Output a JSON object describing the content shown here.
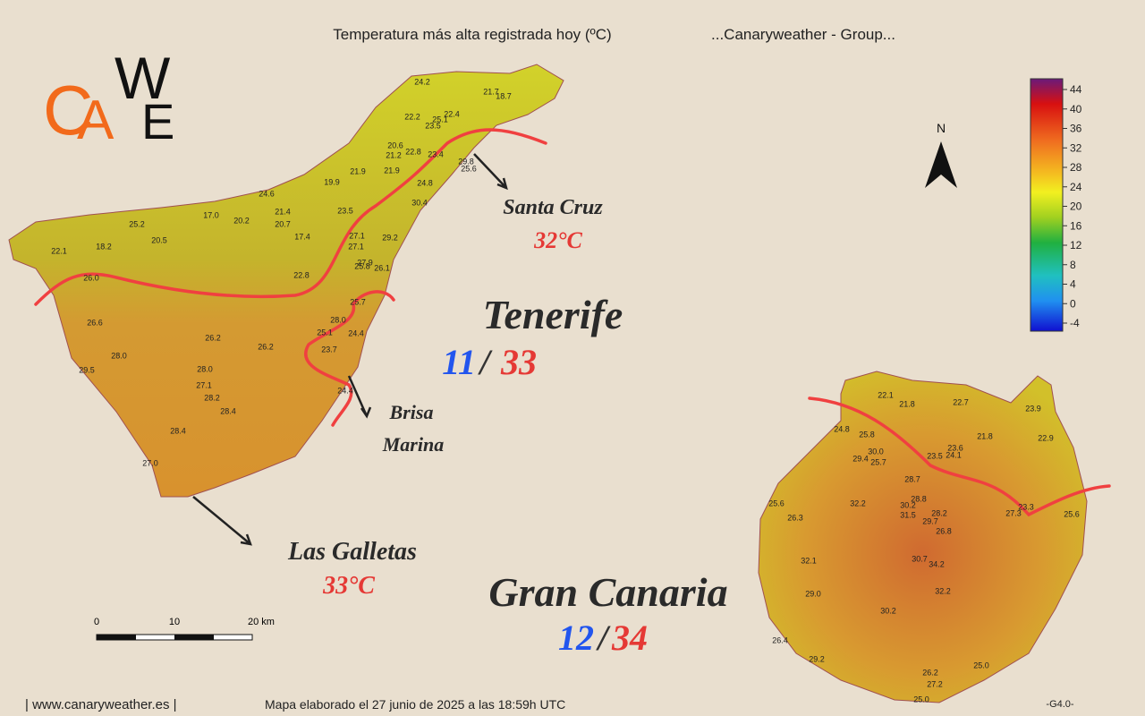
{
  "header": {
    "title": "Temperatura más alta registrada hoy (ºC)",
    "source": "...Canaryweather - Group..."
  },
  "logo": {
    "letters": [
      "C",
      "A",
      "W",
      "E"
    ]
  },
  "north": "N",
  "legend": {
    "ticks": [
      "44",
      "40",
      "36",
      "32",
      "28",
      "24",
      "20",
      "16",
      "12",
      "8",
      "4",
      "0",
      "-4"
    ]
  },
  "tenerife": {
    "name": "Tenerife",
    "min": "11",
    "separator": "/",
    "max": "33",
    "stations": [
      "24.2",
      "21.7",
      "18.7",
      "22.2",
      "25.1",
      "22.4",
      "23.5",
      "20.6",
      "22.8",
      "23.4",
      "21.2",
      "29.8",
      "25.6",
      "21.9",
      "21.9",
      "19.9",
      "24.8",
      "24.6",
      "30.4",
      "17.0",
      "20.2",
      "21.4",
      "25.2",
      "23.5",
      "20.7",
      "29.2",
      "17.4",
      "27.1",
      "20.5",
      "18.2",
      "22.1",
      "27.1",
      "27.9",
      "25.8",
      "26.1",
      "22.8",
      "26.0",
      "25.7",
      "26.6",
      "28.0",
      "25.1",
      "24.4",
      "26.2",
      "26.2",
      "28.0",
      "23.7",
      "29.5",
      "28.0",
      "27.1",
      "28.2",
      "28.4",
      "24.4",
      "28.4",
      "27.0"
    ]
  },
  "gran_canaria": {
    "name": "Gran Canaria",
    "min": "12",
    "separator": "/",
    "max": "34",
    "stations": [
      "22.1",
      "21.8",
      "22.7",
      "23.9",
      "24.8",
      "25.8",
      "21.8",
      "22.9",
      "30.0",
      "23.6",
      "29.4",
      "25.7",
      "23.5",
      "24.1",
      "28.7",
      "32.2",
      "28.8",
      "30.2",
      "25.6",
      "27.3",
      "23.3",
      "25.6",
      "31.5",
      "28.2",
      "29.7",
      "26.3",
      "26.8",
      "32.1",
      "30.7",
      "34.2",
      "29.0",
      "32.2",
      "30.2",
      "26.4",
      "29.2",
      "25.0",
      "26.2",
      "27.2",
      "25.0"
    ]
  },
  "annotations": {
    "santa_cruz": {
      "name": "Santa Cruz",
      "temp": "32°C"
    },
    "brisa": [
      "Brisa",
      "Marina"
    ],
    "las_galletas": {
      "name": "Las Galletas",
      "temp": "33°C"
    }
  },
  "scale": [
    "0",
    "10",
    "20 km"
  ],
  "footer": {
    "site": "| www.canaryweather.es |",
    "made": "Mapa elaborado el 27 junio de 2025 a las 18:59h UTC",
    "version": "-G4.0-"
  }
}
